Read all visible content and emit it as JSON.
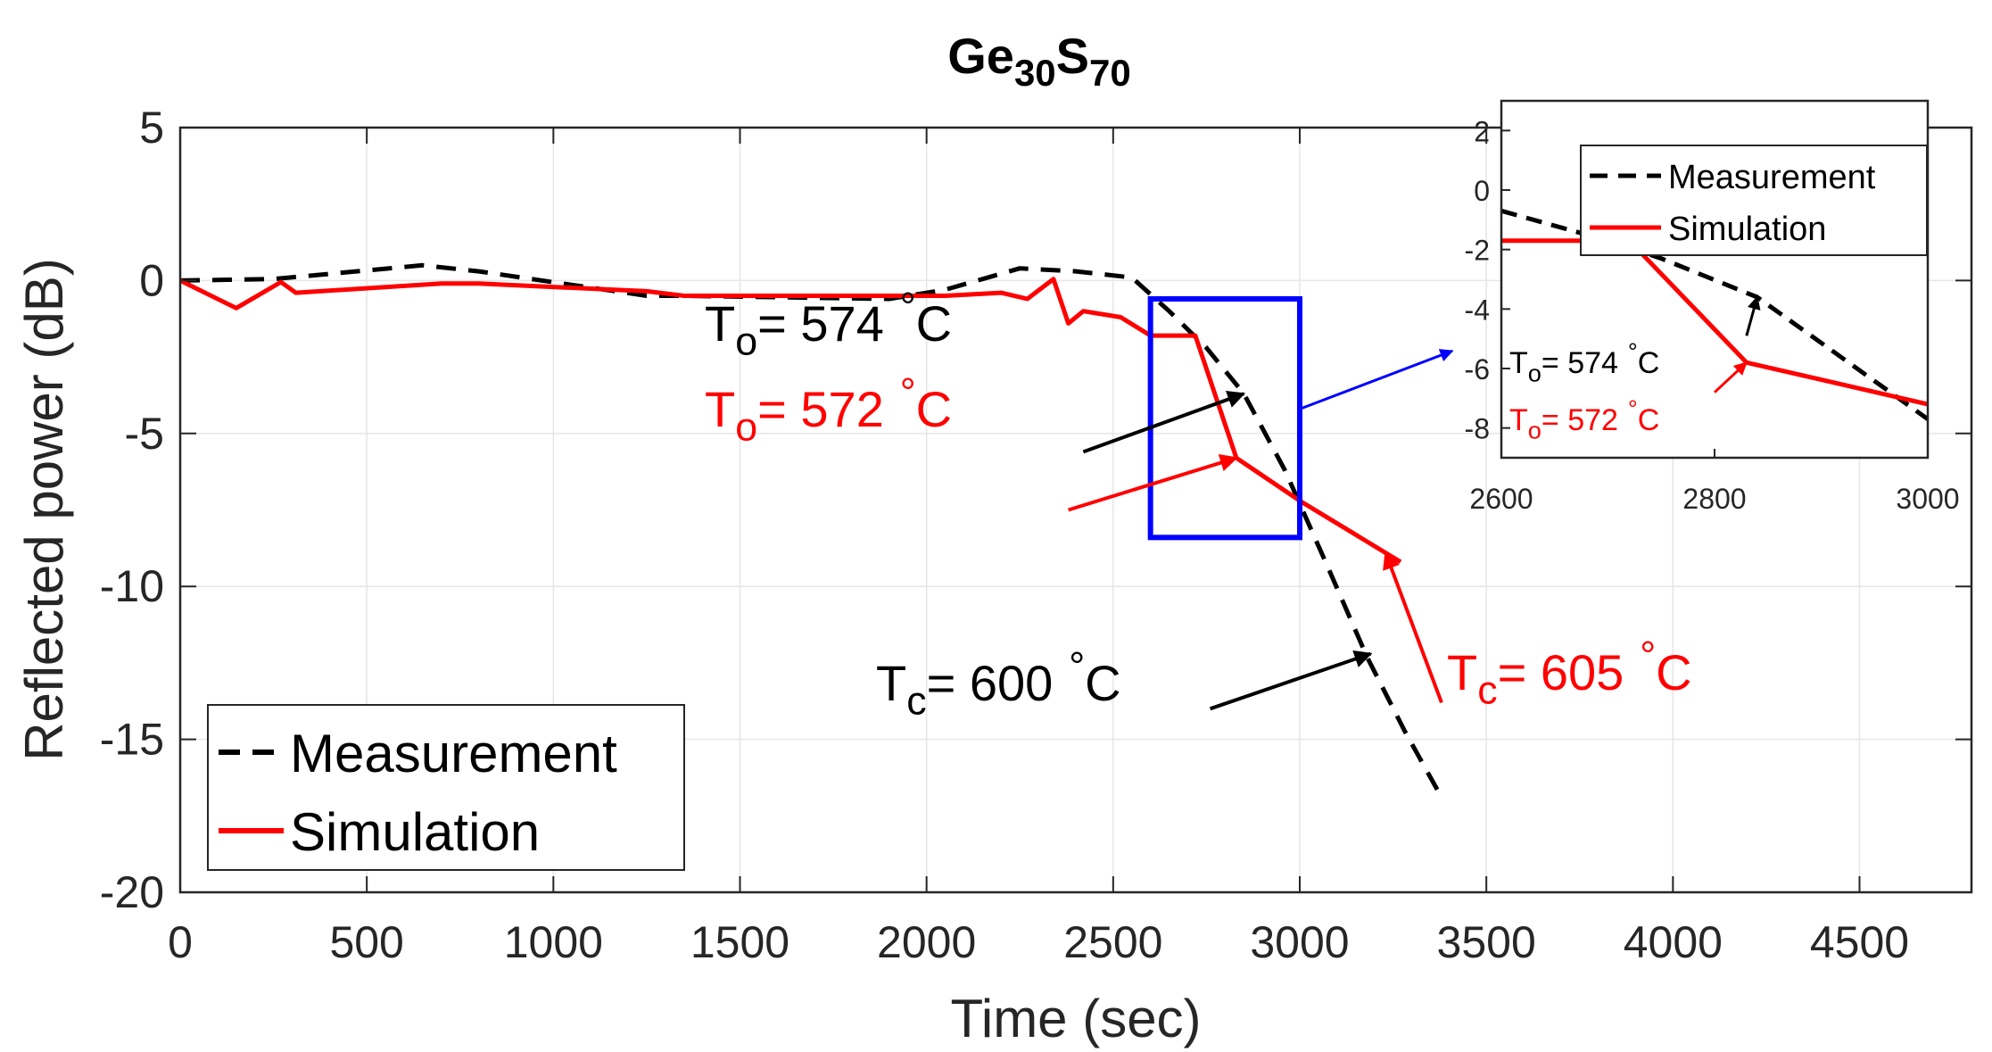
{
  "chart_data": [
    {
      "id": "main",
      "type": "line",
      "title_main": "Ge",
      "title_sub1": "30",
      "title_mid": "S",
      "title_sub2": "70",
      "xlabel": "Time (sec)",
      "ylabel": "Reflected power (dB)",
      "xlim": [
        0,
        4800
      ],
      "ylim": [
        -20,
        5
      ],
      "xticks": [
        0,
        500,
        1000,
        1500,
        2000,
        2500,
        3000,
        3500,
        4000,
        4500
      ],
      "yticks": [
        5,
        0,
        -5,
        -10,
        -15,
        -20
      ],
      "grid": true,
      "legend_position": "bottom-left",
      "series": [
        {
          "name": "Measurement",
          "color": "#000000",
          "style": "dashed",
          "points": [
            [
              0,
              0
            ],
            [
              250,
              0.05
            ],
            [
              650,
              0.5
            ],
            [
              800,
              0.3
            ],
            [
              1250,
              -0.5
            ],
            [
              1350,
              -0.5
            ],
            [
              1900,
              -0.6
            ],
            [
              2050,
              -0.3
            ],
            [
              2250,
              0.4
            ],
            [
              2400,
              0.3
            ],
            [
              2550,
              0.1
            ],
            [
              2650,
              -1.0
            ],
            [
              2750,
              -2.2
            ],
            [
              2850,
              -3.7
            ],
            [
              2960,
              -6.2
            ],
            [
              3080,
              -9.5
            ],
            [
              3180,
              -12.3
            ],
            [
              3280,
              -14.7
            ],
            [
              3380,
              -16.9
            ]
          ]
        },
        {
          "name": "Simulation",
          "color": "#ff0000",
          "style": "solid",
          "points": [
            [
              0,
              0
            ],
            [
              150,
              -0.9
            ],
            [
              270,
              -0.05
            ],
            [
              310,
              -0.4
            ],
            [
              700,
              -0.1
            ],
            [
              800,
              -0.1
            ],
            [
              1250,
              -0.35
            ],
            [
              1350,
              -0.5
            ],
            [
              1800,
              -0.5
            ],
            [
              2050,
              -0.5
            ],
            [
              2200,
              -0.4
            ],
            [
              2270,
              -0.6
            ],
            [
              2340,
              0.05
            ],
            [
              2380,
              -1.4
            ],
            [
              2420,
              -1.0
            ],
            [
              2520,
              -1.2
            ],
            [
              2600,
              -1.8
            ],
            [
              2720,
              -1.8
            ],
            [
              2830,
              -5.8
            ],
            [
              3000,
              -7.2
            ],
            [
              3270,
              -9.2
            ]
          ]
        }
      ],
      "annotations": [
        {
          "id": "to_meas",
          "color": "#000000",
          "main": "T",
          "sub": "o",
          "rest": "= 574",
          "deg": "°",
          "unit": "C",
          "tail": [
            2420,
            -5.6
          ],
          "head": [
            2850,
            -3.7
          ]
        },
        {
          "id": "to_sim",
          "color": "#ff0000",
          "main": "T",
          "sub": "o",
          "rest": "= 572",
          "deg": "°",
          "unit": "C",
          "tail": [
            2380,
            -7.5
          ],
          "head": [
            2830,
            -5.8
          ]
        },
        {
          "id": "tc_meas",
          "color": "#000000",
          "main": "T",
          "sub": "c",
          "rest": "= 600",
          "deg": "°",
          "unit": "C",
          "tail": [
            2760,
            -14.0
          ],
          "head": [
            3190,
            -12.2
          ]
        },
        {
          "id": "tc_sim",
          "color": "#ff0000",
          "main": "T",
          "sub": "c",
          "rest": "= 605",
          "deg": "°",
          "unit": "C",
          "tail": [
            3380,
            -13.8
          ],
          "head": [
            3230,
            -8.9
          ]
        }
      ],
      "zoom_box": {
        "color": "#0000ff",
        "x_range": [
          2600,
          3000
        ],
        "y_range": [
          -8.4,
          -0.6
        ]
      }
    },
    {
      "id": "inset",
      "type": "line",
      "xlim": [
        2600,
        3000
      ],
      "ylim": [
        -9,
        3
      ],
      "xticks": [
        2600,
        2800,
        3000
      ],
      "yticks": [
        2,
        0,
        -2,
        -4,
        -6,
        -8
      ],
      "grid": false,
      "legend_position": "top-right",
      "series": [
        {
          "name": "Measurement",
          "color": "#000000",
          "style": "dashed",
          "points": [
            [
              2600,
              -0.7
            ],
            [
              2700,
              -1.7
            ],
            [
              2750,
              -2.3
            ],
            [
              2840,
              -3.6
            ],
            [
              3000,
              -7.7
            ]
          ]
        },
        {
          "name": "Simulation",
          "color": "#ff0000",
          "style": "solid",
          "points": [
            [
              2600,
              -1.7
            ],
            [
              2720,
              -1.7
            ],
            [
              2830,
              -5.8
            ],
            [
              3000,
              -7.2
            ]
          ]
        }
      ],
      "annotations": [
        {
          "id": "inset_to_meas",
          "color": "#000000",
          "main": "T",
          "sub": "o",
          "rest": "= 574",
          "deg": "°",
          "unit": "C",
          "tail": [
            2830,
            -4.9
          ],
          "head": [
            2840,
            -3.6
          ]
        },
        {
          "id": "inset_to_sim",
          "color": "#ff0000",
          "main": "T",
          "sub": "o",
          "rest": "= 572",
          "deg": "°",
          "unit": "C",
          "tail": [
            2800,
            -6.8
          ],
          "head": [
            2830,
            -5.8
          ]
        }
      ]
    }
  ]
}
